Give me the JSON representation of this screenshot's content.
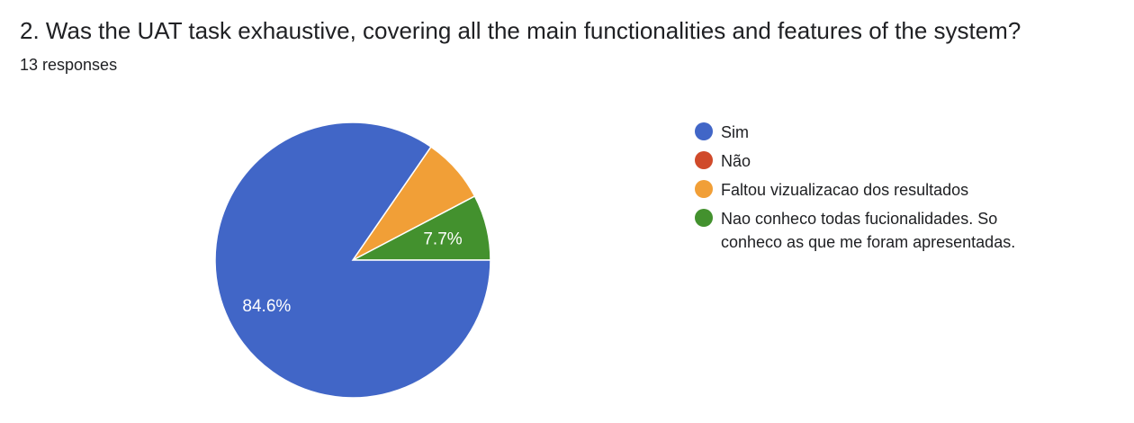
{
  "question": {
    "title": "2. Was the UAT task exhaustive, covering all the main functionalities and features of the system?",
    "responses": "13 responses"
  },
  "chart_data": {
    "type": "pie",
    "title": "2. Was the UAT task exhaustive, covering all the main functionalities and features of the system?",
    "legend_position": "right",
    "slices": [
      {
        "label": "Sim",
        "value": 11,
        "percent_label": "84.6%",
        "color": "#4166c7"
      },
      {
        "label": "Não",
        "value": 0,
        "percent_label": "",
        "color": "#d04a2a"
      },
      {
        "label": "Faltou vizualizacao dos resultados",
        "value": 1,
        "percent_label": "",
        "color": "#f19f37"
      },
      {
        "label": "Nao conheco todas fucionalidades. So conheco as que me foram apresentadas.",
        "value": 1,
        "percent_label": "7.7%",
        "color": "#43912e"
      }
    ]
  }
}
